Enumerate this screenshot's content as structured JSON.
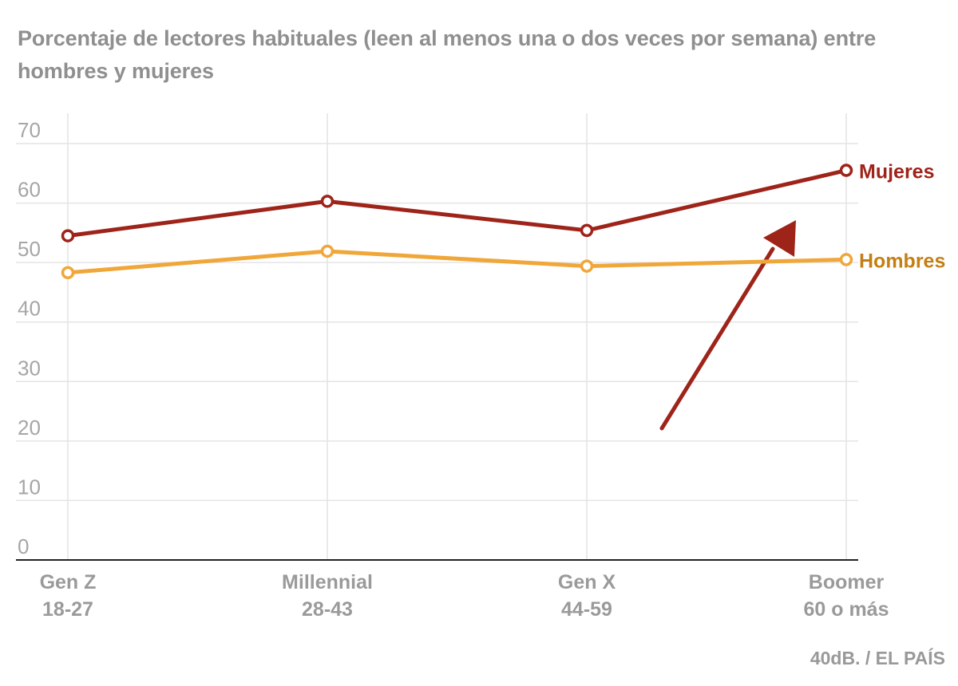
{
  "chart_data": {
    "type": "line",
    "title": "Porcentaje de lectores habituales (leen al menos una o dos veces por semana) entre hombres y mujeres",
    "categories": [
      [
        "Gen Z",
        "18-27"
      ],
      [
        "Millennial",
        "28-43"
      ],
      [
        "Gen X",
        "44-59"
      ],
      [
        "Boomer",
        "60 o más"
      ]
    ],
    "series": [
      {
        "name": "Mujeres",
        "values": [
          54.5,
          60.3,
          55.4,
          65.5
        ],
        "color": "#9e241a"
      },
      {
        "name": "Hombres",
        "values": [
          48.3,
          51.9,
          49.4,
          50.5
        ],
        "color": "#f0a73a"
      }
    ],
    "ylim": [
      0,
      70
    ],
    "yticks": [
      0,
      10,
      20,
      30,
      40,
      50,
      60,
      70
    ],
    "grid": true,
    "legend": "direct labels at line ends",
    "annotation": {
      "type": "arrow",
      "color": "#9e241a"
    },
    "source": "40dB. / EL PAÍS"
  }
}
